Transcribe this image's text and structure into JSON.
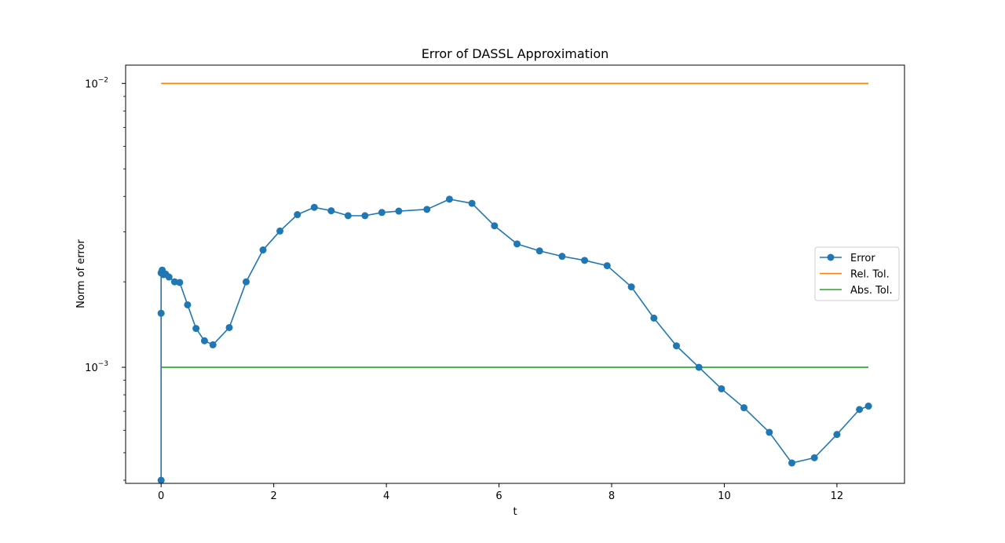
{
  "chart_data": {
    "type": "line",
    "title": "Error of DASSL Approximation",
    "xlabel": "t",
    "ylabel": "Norm of error",
    "yscale": "log",
    "xlim": [
      -0.63,
      13.2
    ],
    "ylim": [
      0.00039,
      0.0116
    ],
    "grid": false,
    "legend_position": "center-right",
    "x_ticks": [
      {
        "value": 0,
        "label": "0"
      },
      {
        "value": 2,
        "label": "2"
      },
      {
        "value": 4,
        "label": "4"
      },
      {
        "value": 6,
        "label": "6"
      },
      {
        "value": 8,
        "label": "8"
      },
      {
        "value": 10,
        "label": "10"
      },
      {
        "value": 12,
        "label": "12"
      }
    ],
    "y_ticks": [
      {
        "value": 0.01,
        "base": "10",
        "exp": "−2"
      },
      {
        "value": 0.001,
        "base": "10",
        "exp": "−3"
      }
    ],
    "series": [
      {
        "name": "Error",
        "color": "#1f77b4",
        "marker": "circle",
        "x": [
          0,
          0,
          0.0,
          0.02,
          0.04,
          0.08,
          0.14,
          0.24,
          0.33,
          0.47,
          0.62,
          0.77,
          0.92,
          1.21,
          1.51,
          1.81,
          2.11,
          2.42,
          2.72,
          3.02,
          3.32,
          3.62,
          3.92,
          4.22,
          4.72,
          5.12,
          5.52,
          5.92,
          6.32,
          6.72,
          7.12,
          7.52,
          7.92,
          8.35,
          8.75,
          9.15,
          9.55,
          9.95,
          10.35,
          10.8,
          11.2,
          11.6,
          12.0,
          12.4,
          12.56
        ],
        "y": [
          0.0004,
          0.00155,
          0.00215,
          0.0022,
          0.00212,
          0.00213,
          0.00208,
          0.002,
          0.00199,
          0.00166,
          0.00137,
          0.00124,
          0.0012,
          0.00138,
          0.002,
          0.00259,
          0.00302,
          0.00345,
          0.00366,
          0.00356,
          0.00342,
          0.00342,
          0.00351,
          0.00355,
          0.0036,
          0.00391,
          0.00378,
          0.00315,
          0.00272,
          0.00257,
          0.00246,
          0.00238,
          0.00228,
          0.00192,
          0.00149,
          0.00119,
          0.001,
          0.00084,
          0.00072,
          0.00059,
          0.00046,
          0.00048,
          0.00058,
          0.00071,
          0.00073
        ]
      },
      {
        "name": "Rel. Tol.",
        "color": "#ff7f0e",
        "marker": "none",
        "x": [
          0,
          12.56
        ],
        "y": [
          0.01,
          0.01
        ]
      },
      {
        "name": "Abs. Tol.",
        "color": "#2ca02c",
        "marker": "none",
        "x": [
          0,
          12.56
        ],
        "y": [
          0.001,
          0.001
        ]
      }
    ]
  }
}
